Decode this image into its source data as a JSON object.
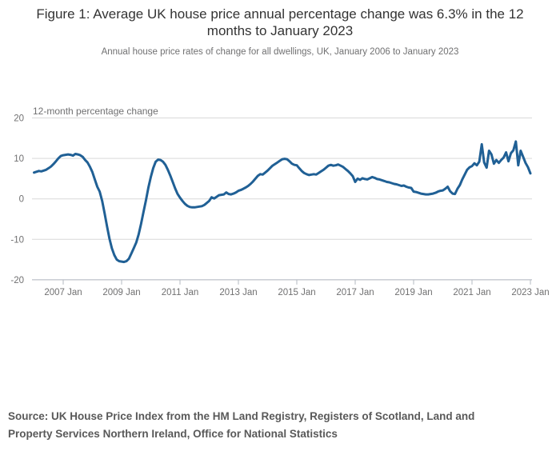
{
  "figure": {
    "title": "Figure 1: Average UK house price annual percentage change was 6.3% in the 12 months to January 2023",
    "subtitle": "Annual house price rates of change for all dwellings, UK, January 2006 to January 2023",
    "source": "Source: UK House Price Index from the HM Land Registry, Registers of Scotland, Land and Property Services Northern Ireland, Office for National Statistics"
  },
  "colors": {
    "line": "#206095",
    "gridline": "#d9d9d9",
    "axis": "#b3b9c2",
    "text_primary": "#333333",
    "text_secondary": "#707071",
    "source_text": "#595959"
  },
  "chart_data": {
    "type": "line",
    "title": "Figure 1: Average UK house price annual percentage change was 6.3% in the 12 months to January 2023",
    "subtitle": "Annual house price rates of change for all dwellings, UK, January 2006 to January 2023",
    "axis_label": "12-month percentage change",
    "xlabel": "",
    "ylabel": "12-month percentage change",
    "ylim": [
      -20,
      20
    ],
    "y_ticks": [
      20,
      10,
      0,
      -10,
      -20
    ],
    "x_tick_labels": [
      "2007 Jan",
      "2009 Jan",
      "2011 Jan",
      "2013 Jan",
      "2015 Jan",
      "2017 Jan",
      "2019 Jan",
      "2021 Jan",
      "2023 Jan"
    ],
    "x_start": "2006-01",
    "x_end": "2023-01",
    "frequency": "monthly",
    "grid": true,
    "legend": "none",
    "final_value_pct": 6.3,
    "series": [
      {
        "name": "12-month percentage change",
        "color": "#206095",
        "values": [
          6.5,
          6.7,
          6.9,
          6.8,
          7.0,
          7.2,
          7.6,
          8.0,
          8.6,
          9.3,
          10.0,
          10.6,
          10.8,
          10.9,
          11.0,
          10.9,
          10.7,
          11.1,
          11.0,
          10.8,
          10.4,
          9.6,
          9.0,
          7.9,
          6.6,
          4.8,
          3.0,
          1.8,
          -0.5,
          -3.5,
          -6.8,
          -9.8,
          -12.2,
          -13.9,
          -15.0,
          -15.4,
          -15.5,
          -15.6,
          -15.4,
          -14.8,
          -13.5,
          -12.2,
          -10.8,
          -8.8,
          -6.2,
          -3.2,
          -0.4,
          2.8,
          5.4,
          7.6,
          9.2,
          9.7,
          9.6,
          9.2,
          8.4,
          7.2,
          5.8,
          4.2,
          2.6,
          1.2,
          0.3,
          -0.5,
          -1.2,
          -1.7,
          -2.0,
          -2.1,
          -2.1,
          -2.0,
          -1.9,
          -1.8,
          -1.5,
          -1.0,
          -0.5,
          0.4,
          0.1,
          0.5,
          0.9,
          1.0,
          1.1,
          1.6,
          1.2,
          1.1,
          1.3,
          1.6,
          2.0,
          2.2,
          2.5,
          2.8,
          3.2,
          3.7,
          4.3,
          5.0,
          5.7,
          6.1,
          6.0,
          6.5,
          7.0,
          7.6,
          8.2,
          8.6,
          9.0,
          9.4,
          9.8,
          9.9,
          9.8,
          9.3,
          8.7,
          8.4,
          8.3,
          7.6,
          6.9,
          6.4,
          6.1,
          5.9,
          6.0,
          6.1,
          6.0,
          6.4,
          6.8,
          7.2,
          7.7,
          8.2,
          8.4,
          8.2,
          8.3,
          8.5,
          8.2,
          7.9,
          7.4,
          6.9,
          6.3,
          5.6,
          4.2,
          5.0,
          4.7,
          5.1,
          4.9,
          4.8,
          5.1,
          5.4,
          5.2,
          4.9,
          4.8,
          4.6,
          4.4,
          4.2,
          4.1,
          3.9,
          3.7,
          3.6,
          3.4,
          3.2,
          3.3,
          3.0,
          2.8,
          2.7,
          1.8,
          1.7,
          1.5,
          1.3,
          1.2,
          1.1,
          1.1,
          1.2,
          1.3,
          1.5,
          1.8,
          2.0,
          2.1,
          2.5,
          3.0,
          1.9,
          1.3,
          1.2,
          2.5,
          3.4,
          4.8,
          6.0,
          7.2,
          7.8,
          8.1,
          8.8,
          8.3,
          9.2,
          13.5,
          9.0,
          7.7,
          11.9,
          11.0,
          8.7,
          9.6,
          8.9,
          9.6,
          10.2,
          11.5,
          9.3,
          11.3,
          12.0,
          14.2,
          8.3,
          11.9,
          10.4,
          8.9,
          7.8,
          6.3
        ]
      }
    ]
  }
}
